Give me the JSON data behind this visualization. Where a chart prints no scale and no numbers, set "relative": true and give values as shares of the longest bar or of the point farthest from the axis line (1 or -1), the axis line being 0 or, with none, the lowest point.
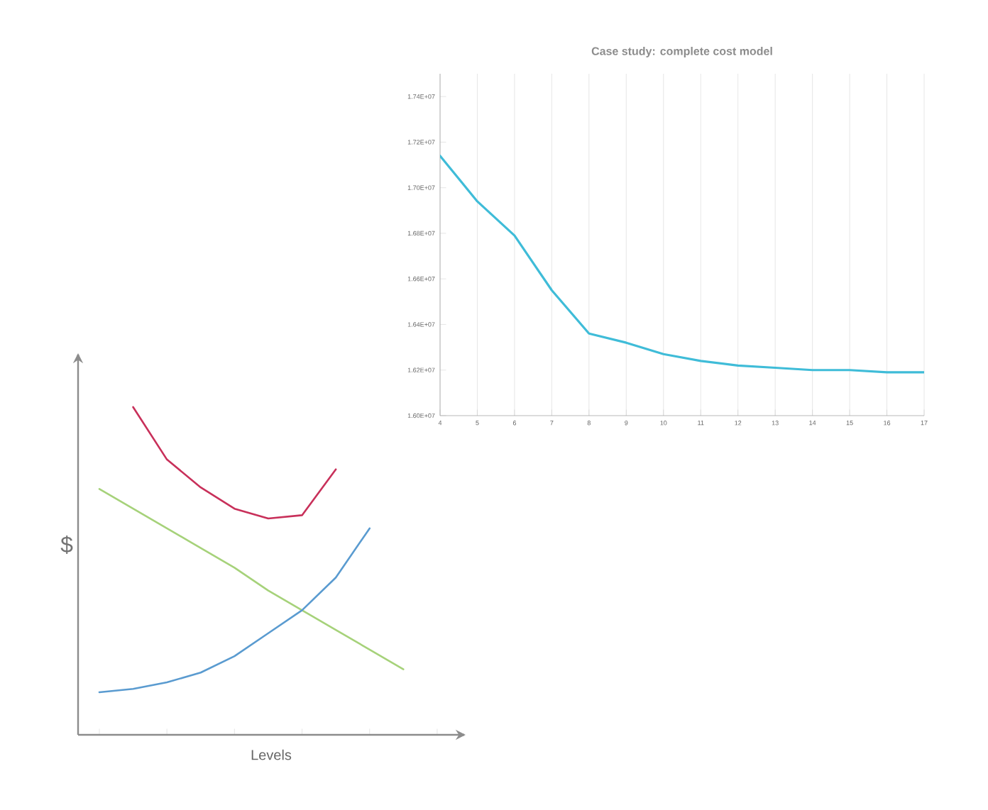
{
  "chart_data": [
    {
      "type": "line",
      "title": "Case study: complete cost model",
      "x": [
        4,
        5,
        6,
        7,
        8,
        9,
        10,
        11,
        12,
        13,
        14,
        15,
        16,
        17
      ],
      "series": [
        {
          "color": "#3fbcd8",
          "values": [
            17140000,
            16940000,
            16790000,
            16550000,
            16360000,
            16320000,
            16270000,
            16240000,
            16220000,
            16210000,
            16200000,
            16200000,
            16190000,
            16190000
          ]
        }
      ],
      "xlim": [
        4,
        17
      ],
      "xticks": [
        4,
        5,
        6,
        7,
        8,
        9,
        10,
        11,
        12,
        13,
        14,
        15,
        16,
        17
      ],
      "ylim": [
        16000000,
        17500000
      ],
      "yticks": [
        {
          "value": 16000000,
          "label": "1.60E+07"
        },
        {
          "value": 16200000,
          "label": "1.62E+07"
        },
        {
          "value": 16400000,
          "label": "1.64E+07"
        },
        {
          "value": 16600000,
          "label": "1.66E+07"
        },
        {
          "value": 16800000,
          "label": "1.68E+07"
        },
        {
          "value": 17000000,
          "label": "1.70E+07"
        },
        {
          "value": 17200000,
          "label": "1.72E+07"
        },
        {
          "value": 17400000,
          "label": "1.74E+07"
        }
      ],
      "grid": "x"
    },
    {
      "type": "line",
      "relative": true,
      "xlabel": "Levels",
      "ylabel": "$",
      "tick_labels": false,
      "categories": [
        null,
        null,
        null,
        null,
        null,
        null,
        null,
        null,
        null,
        null
      ],
      "series": [
        {
          "color": "#c8305a",
          "values": [
            null,
            1,
            0.84,
            0.755,
            0.69,
            0.66,
            0.67,
            0.81,
            null,
            null
          ]
        },
        {
          "color": "#a6d27a",
          "values": [
            0.75,
            0.69,
            0.63,
            0.57,
            0.51,
            0.44,
            0.38,
            0.32,
            0.26,
            0.2
          ]
        },
        {
          "color": "#5a9bd0",
          "values": [
            0.13,
            0.14,
            0.16,
            0.19,
            0.24,
            0.31,
            0.38,
            0.48,
            0.63,
            null
          ]
        }
      ]
    }
  ]
}
